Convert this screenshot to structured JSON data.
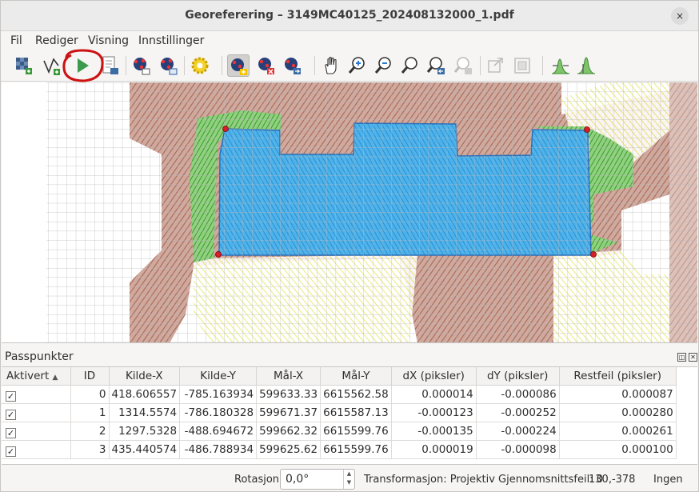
{
  "window": {
    "title": "Georeferering – 3149MC40125_202408132000_1.pdf",
    "close_glyph": "×"
  },
  "menu": [
    "Fil",
    "Rediger",
    "Visning",
    "Innstillinger"
  ],
  "toolbar": {
    "icons": [
      "open-raster-icon",
      "start-georeferencing-icon",
      "generate-gdal-script-icon",
      "load-gcp-points-icon",
      "save-gcp-points-icon",
      "transformation-settings-icon",
      "add-point-icon",
      "delete-point-icon",
      "move-gcp-icon",
      "pan-icon",
      "zoom-in-icon",
      "zoom-out-icon",
      "zoom-to-layer-icon",
      "zoom-last-icon",
      "zoom-next-icon",
      "link-georef-to-qgis-icon",
      "link-qgis-to-georef-icon",
      "full-histogram-stretch-icon",
      "local-histogram-stretch-icon"
    ]
  },
  "panel": {
    "title": "Passpunkter"
  },
  "table": {
    "headers": [
      "Aktivert",
      "ID",
      "Kilde-X",
      "Kilde-Y",
      "Mål-X",
      "Mål-Y",
      "dX (piksler)",
      "dY (piksler)",
      "Restfeil (piksler)"
    ],
    "rows": [
      [
        "✓",
        "0",
        "418.606557",
        "-785.163934",
        "599633.33",
        "6615562.58",
        "0.000014",
        "-0.000086",
        "0.000087"
      ],
      [
        "✓",
        "1",
        "1314.5574",
        "-786.180328",
        "599671.37",
        "6615587.13",
        "-0.000123",
        "-0.000252",
        "0.000280"
      ],
      [
        "✓",
        "2",
        "1297.5328",
        "-488.694672",
        "599662.32",
        "6615599.76",
        "-0.000135",
        "-0.000224",
        "0.000261"
      ],
      [
        "✓",
        "3",
        "435.440574",
        "-486.788934",
        "599625.62",
        "6615599.76",
        "0.000019",
        "-0.000098",
        "0.000100"
      ]
    ]
  },
  "status": {
    "rotation_label": "Rotasjon",
    "rotation_value": "0,0°",
    "transform": "Transformasjon: Projektiv Gjennomsnittsfeil: 0",
    "coords": "130,-378",
    "crs": "Ingen"
  },
  "colors": {
    "highlight_circle": "#cc1111",
    "blue_fill": "#2f9de0",
    "green": "#4caf3a",
    "brown": "#a0523d",
    "yellow": "#e7e23a"
  }
}
